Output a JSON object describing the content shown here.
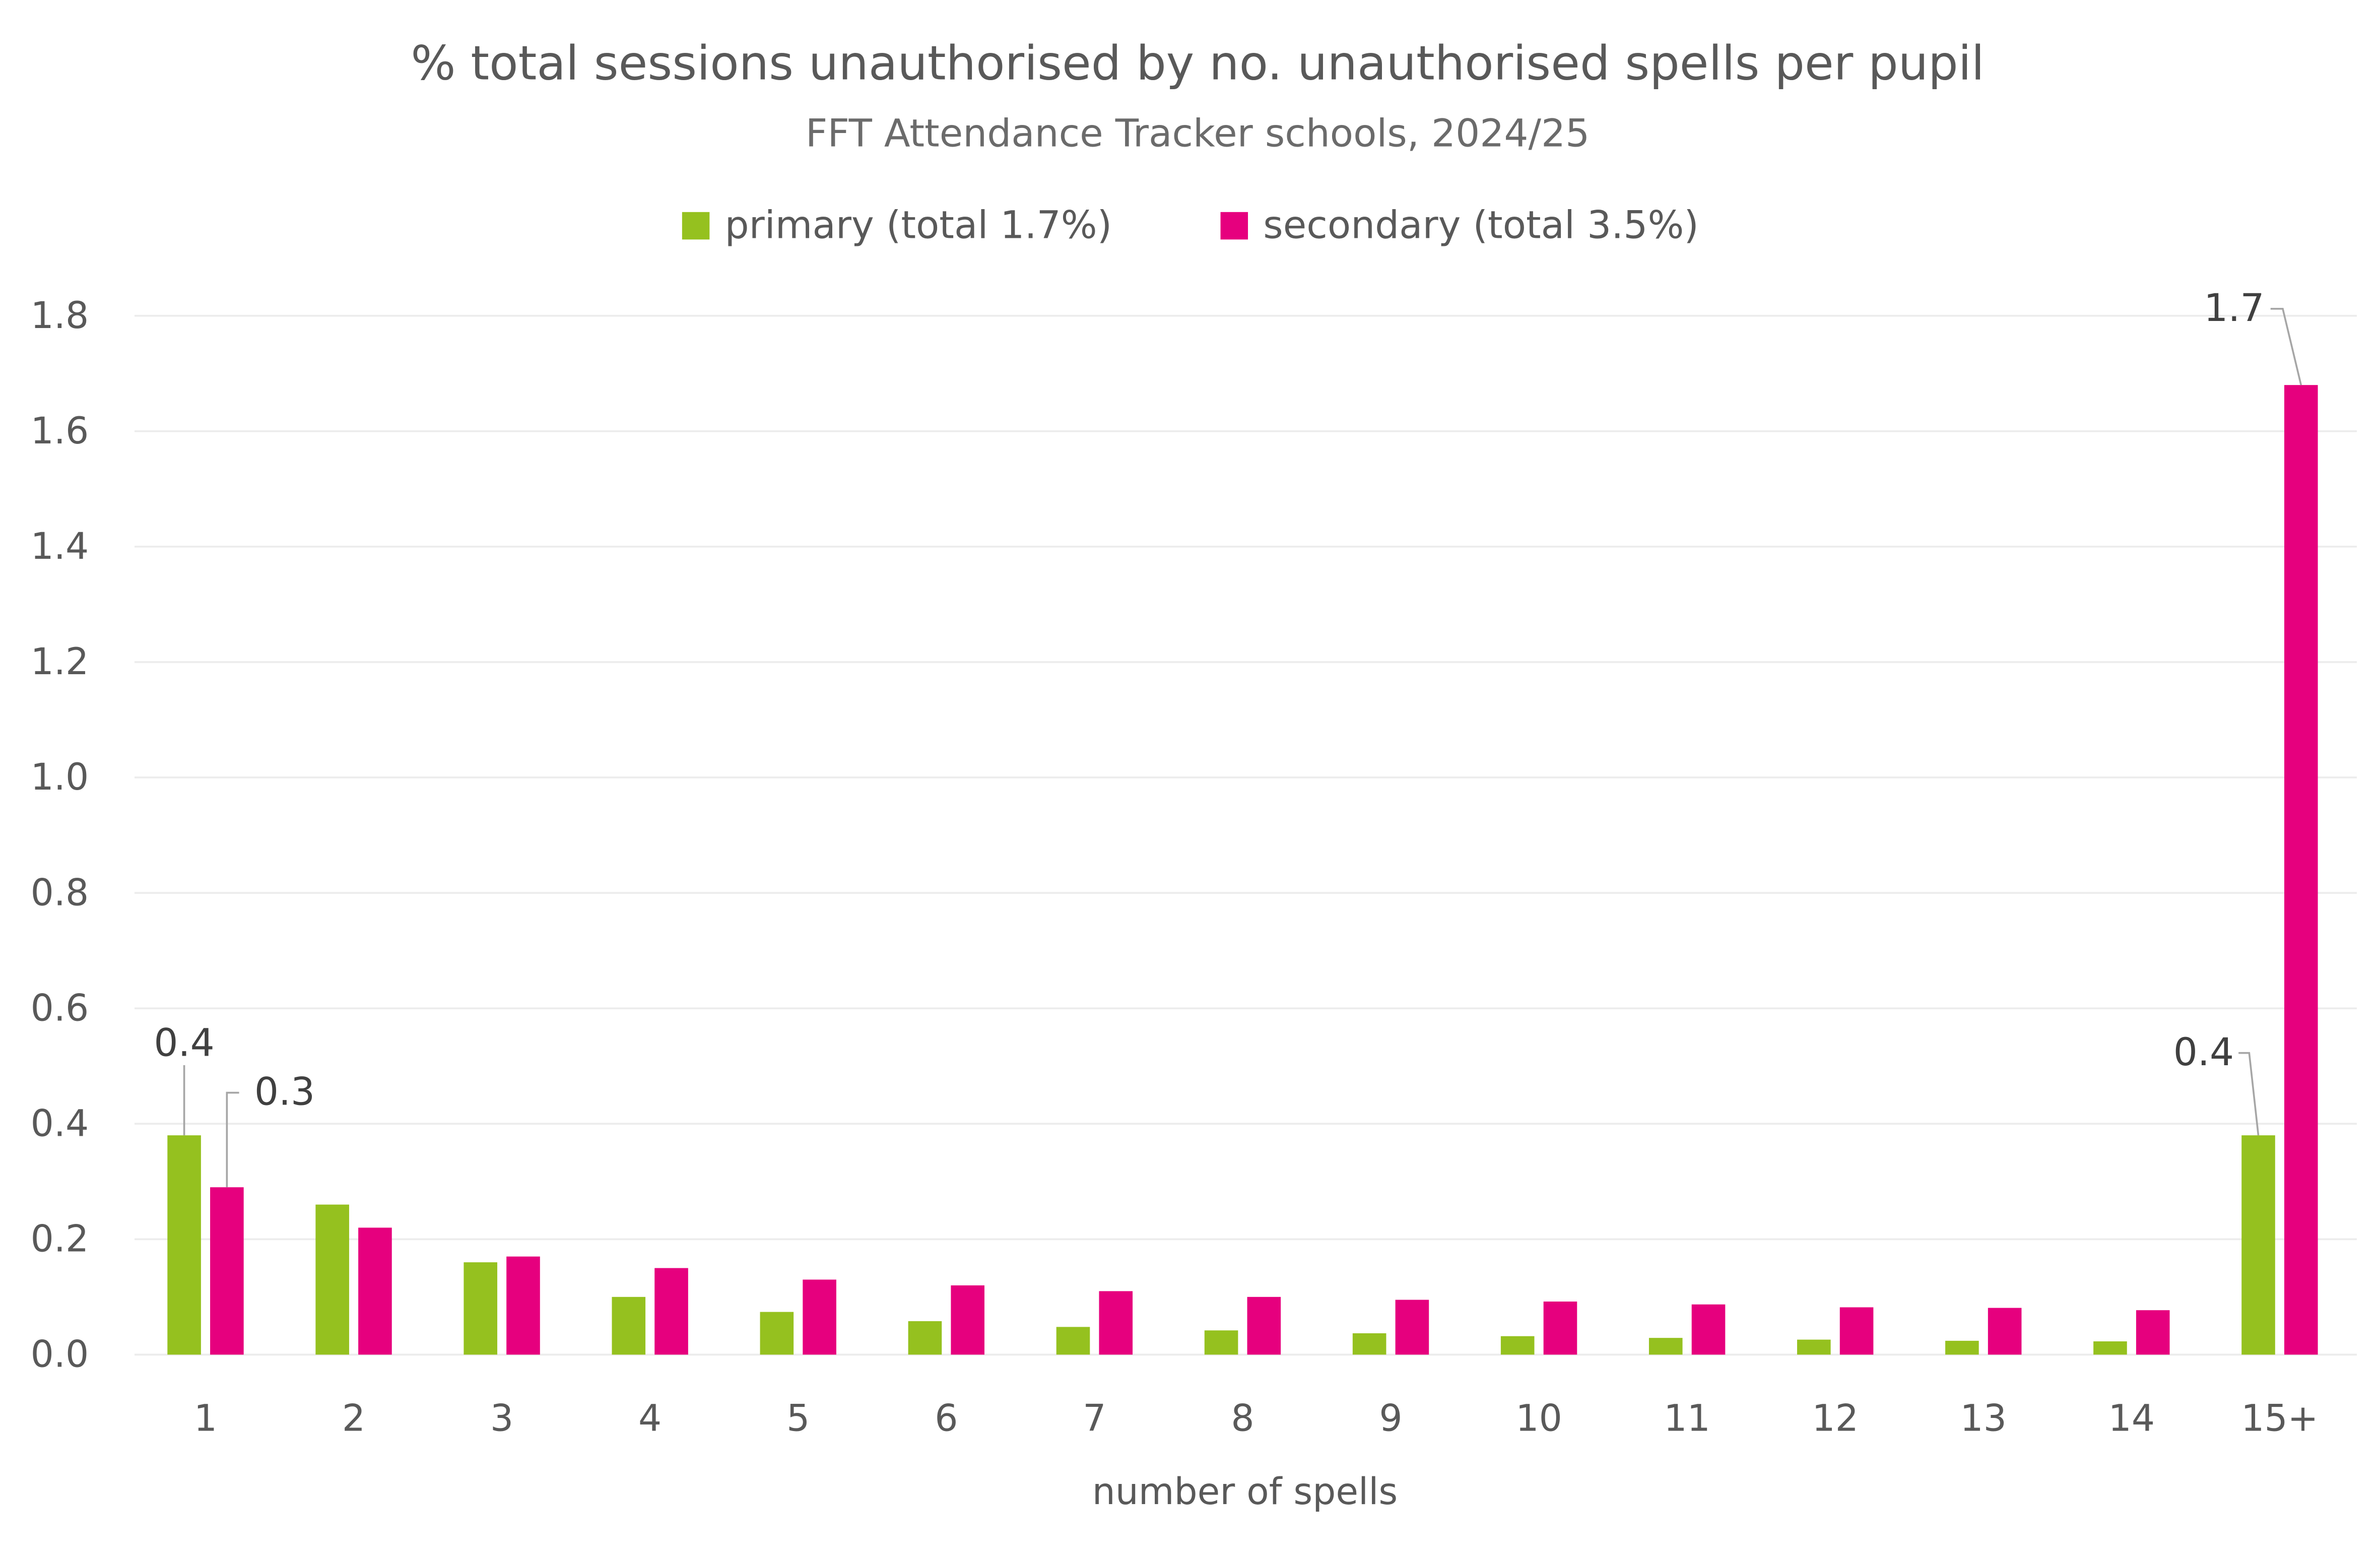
{
  "chart_data": {
    "type": "bar",
    "title": "% total sessions unauthorised by no. unauthorised spells per pupil",
    "subtitle": "FFT Attendance Tracker schools, 2024/25",
    "xlabel": "number of spells",
    "ylabel": "",
    "ylim": [
      0,
      1.8
    ],
    "yticks": [
      "0.0",
      "0.2",
      "0.4",
      "0.6",
      "0.8",
      "1.0",
      "1.2",
      "1.4",
      "1.6",
      "1.8"
    ],
    "grid": true,
    "legend_placement": "top-center",
    "categories": [
      "1",
      "2",
      "3",
      "4",
      "5",
      "6",
      "7",
      "8",
      "9",
      "10",
      "11",
      "12",
      "13",
      "14",
      "15+"
    ],
    "series": [
      {
        "name": "primary (total 1.7%)",
        "color": "#95c11f",
        "values": [
          0.38,
          0.26,
          0.16,
          0.1,
          0.074,
          0.058,
          0.048,
          0.042,
          0.037,
          0.032,
          0.029,
          0.026,
          0.024,
          0.023,
          0.38
        ]
      },
      {
        "name": "secondary (total 3.5%)",
        "color": "#e6007e",
        "values": [
          0.29,
          0.22,
          0.17,
          0.15,
          0.13,
          0.12,
          0.11,
          0.1,
          0.095,
          0.092,
          0.087,
          0.082,
          0.081,
          0.077,
          1.68
        ]
      }
    ],
    "data_labels": [
      {
        "series": 0,
        "category": "1",
        "text": "0.4"
      },
      {
        "series": 1,
        "category": "1",
        "text": "0.3"
      },
      {
        "series": 0,
        "category": "15+",
        "text": "0.4"
      },
      {
        "series": 1,
        "category": "15+",
        "text": "1.7"
      }
    ]
  }
}
